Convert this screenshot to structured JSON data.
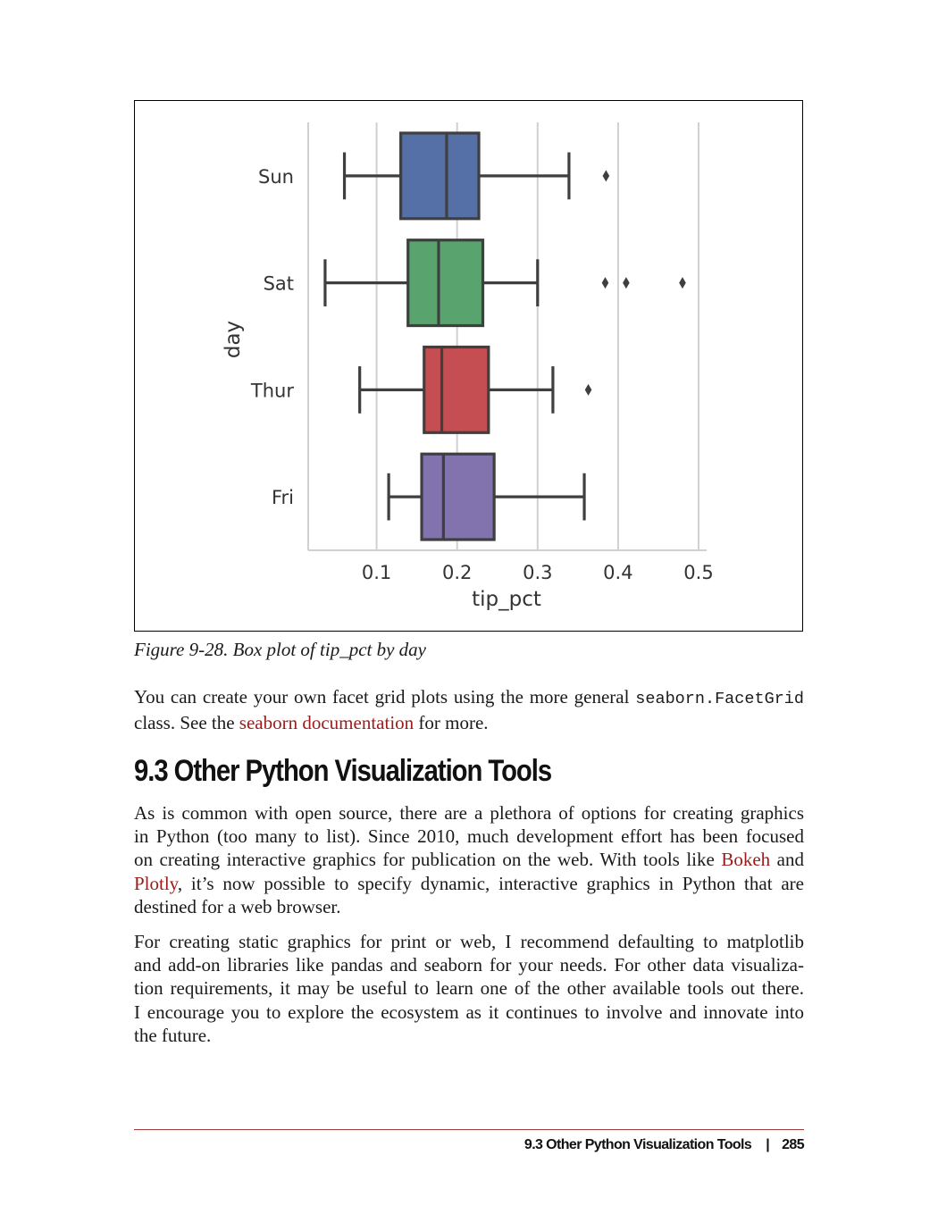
{
  "figure": {
    "caption": "Figure 9-28. Box plot of tip_pct by day"
  },
  "chart_data": {
    "type": "box",
    "orientation": "horizontal",
    "title": "",
    "xlabel": "tip_pct",
    "ylabel": "day",
    "xlim": [
      0.015,
      0.51
    ],
    "xticks": [
      0.1,
      0.2,
      0.3,
      0.4,
      0.5
    ],
    "xtick_labels": [
      "0.1",
      "0.2",
      "0.3",
      "0.4",
      "0.5"
    ],
    "grid": "vertical",
    "categories": [
      "Sun",
      "Sat",
      "Thur",
      "Fri"
    ],
    "boxes": [
      {
        "name": "Sun",
        "color": "#5470a6",
        "whisker_low": 0.06,
        "q1": 0.13,
        "median": 0.187,
        "q3": 0.227,
        "whisker_high": 0.339,
        "outliers": [
          0.385
        ]
      },
      {
        "name": "Sat",
        "color": "#59a36e",
        "whisker_low": 0.036,
        "q1": 0.139,
        "median": 0.177,
        "q3": 0.232,
        "whisker_high": 0.3,
        "outliers": [
          0.384,
          0.41,
          0.48
        ]
      },
      {
        "name": "Thur",
        "color": "#c44e52",
        "whisker_low": 0.079,
        "q1": 0.159,
        "median": 0.181,
        "q3": 0.239,
        "whisker_high": 0.319,
        "outliers": [
          0.363
        ]
      },
      {
        "name": "Fri",
        "color": "#8272ad",
        "whisker_low": 0.115,
        "q1": 0.156,
        "median": 0.183,
        "q3": 0.246,
        "whisker_high": 0.358,
        "outliers": []
      }
    ]
  },
  "paragraph1": {
    "line1_a": "You can create your own facet grid plots using the more general",
    "line1_code": "seaborn.FacetGrid",
    "line2_a": "class. See the",
    "line2_link": "seaborn documentation",
    "line2_b": "for more."
  },
  "section": {
    "heading": "9.3 Other Python Visualization Tools"
  },
  "paragraph2": {
    "line1": "As is common with open source, there are a plethora of options for creating graphics",
    "line2": "in Python (too many to list). Since 2010, much development effort has been focused",
    "line3_a": "on creating interactive graphics for publication on the web. With tools like",
    "line3_link": "Bokeh",
    "line3_b": "and",
    "line4_link": "Plotly",
    "line4_b": ", it’s now possible to specify dynamic, interactive graphics in Python that are",
    "line5": "destined for a web browser."
  },
  "paragraph3": {
    "line1": "For creating static graphics for print or web, I recommend defaulting to matplotlib",
    "line2": "and add-on libraries like pandas and seaborn for your needs. For other data visualiza-",
    "line3": "tion requirements, it may be useful to learn one of the other available tools out there.",
    "line4": "I encourage you to explore the ecosystem as it continues to involve and innovate into",
    "line5": "the future."
  },
  "footer": {
    "section_title": "9.3 Other Python Visualization Tools",
    "separator": "|",
    "page_number": "285"
  },
  "colors": {
    "link": "#9b1b1b",
    "footer_rule": "#a23a3a"
  }
}
